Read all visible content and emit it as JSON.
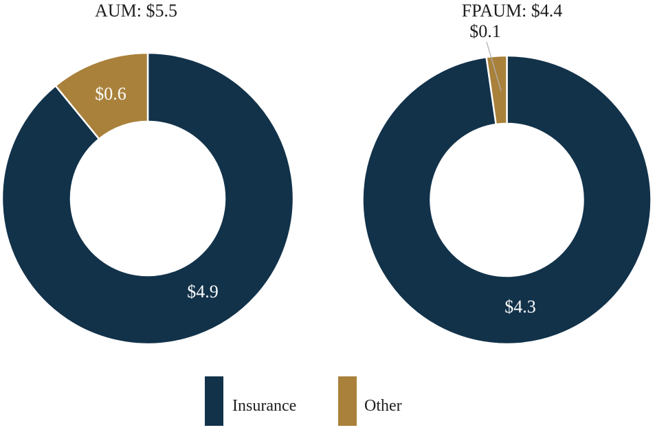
{
  "page": {
    "background_color": "#ffffff",
    "text_color": "#1e1e1e"
  },
  "chart_data": [
    {
      "type": "pie",
      "subtype": "donut",
      "title": "AUM: $5.5",
      "total": 5.5,
      "units": "billions USD",
      "direction": "clockwise",
      "start_angle_deg": 0,
      "donut_hole_ratio": 0.53,
      "slices": [
        {
          "label": "Insurance",
          "value": 4.9,
          "data_label": "$4.9",
          "color": "#12324a",
          "label_color": "#fdfdfd"
        },
        {
          "label": "Other",
          "value": 0.6,
          "data_label": "$0.6",
          "color": "#a9813b",
          "label_color": "#fdfdfd"
        }
      ]
    },
    {
      "type": "pie",
      "subtype": "donut",
      "title": "FPAUM: $4.4",
      "total": 4.4,
      "units": "billions USD",
      "direction": "clockwise",
      "start_angle_deg": 0,
      "donut_hole_ratio": 0.53,
      "slices": [
        {
          "label": "Insurance",
          "value": 4.3,
          "data_label": "$4.3",
          "color": "#12324a",
          "label_color": "#fdfdfd"
        },
        {
          "label": "Other",
          "value": 0.1,
          "data_label": "$0.1",
          "color": "#a9813b",
          "label_color": "#1e1e1e",
          "label_outside": true
        }
      ]
    }
  ],
  "legend": {
    "position": "bottom",
    "items": [
      {
        "label": "Insurance",
        "color": "#12324a"
      },
      {
        "label": "Other",
        "color": "#a9813b"
      }
    ]
  },
  "styles": {
    "slice_separator_color": "#ffffff",
    "leader_line_color": "#b0b0b0"
  }
}
